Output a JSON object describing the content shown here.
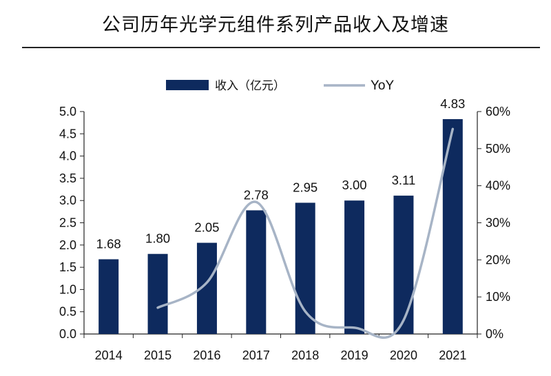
{
  "page": {
    "title": "公司历年光学元组件系列产品收入及增速"
  },
  "chart_data": {
    "type": "bar",
    "title": "公司历年光学元组件系列产品收入及增速",
    "categories": [
      "2014",
      "2015",
      "2016",
      "2017",
      "2018",
      "2019",
      "2020",
      "2021"
    ],
    "series": [
      {
        "name": "收入（亿元）",
        "kind": "bar",
        "axis": "left",
        "color": "#0e2a5e",
        "values": [
          1.68,
          1.8,
          2.05,
          2.78,
          2.95,
          3.0,
          3.11,
          4.83
        ]
      },
      {
        "name": "YoY",
        "kind": "line",
        "axis": "right",
        "color": "#a7b4c6",
        "values": [
          null,
          7.1,
          13.9,
          35.6,
          6.1,
          1.7,
          3.7,
          55.3
        ]
      }
    ],
    "y_left": {
      "min": 0,
      "max": 5.0,
      "step": 0.5,
      "ticks": [
        "0.0",
        "0.5",
        "1.0",
        "1.5",
        "2.0",
        "2.5",
        "3.0",
        "3.5",
        "4.0",
        "4.5",
        "5.0"
      ]
    },
    "y_right": {
      "min": 0,
      "max": 60,
      "step": 10,
      "ticks": [
        "0%",
        "10%",
        "20%",
        "30%",
        "40%",
        "50%",
        "60%"
      ]
    },
    "data_labels": [
      "1.68",
      "1.80",
      "2.05",
      "2.78",
      "2.95",
      "3.00",
      "3.11",
      "4.83"
    ],
    "legend": {
      "position": "top",
      "bar_label": "收入（亿元）",
      "line_label": "YoY"
    },
    "grid": false
  }
}
